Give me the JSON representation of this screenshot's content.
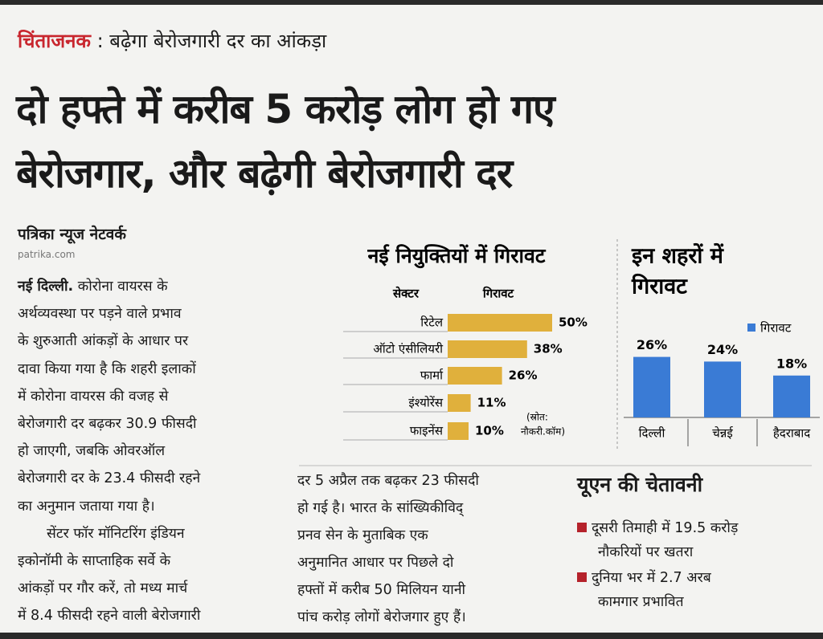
{
  "header": {
    "kicker": "चिंताजनक",
    "subhead": ": बढ़ेगा बेरोजगारी दर का आंकड़ा",
    "headline": [
      "दो हफ्ते में करीब 5 करोड़ लोग हो गए",
      "बेरोजगार, और बढ़ेगी बेरोजगारी दर"
    ]
  },
  "byline": {
    "name": "पत्रिका न्यूज नेटवर्क",
    "site": "patrika.com"
  },
  "article": {
    "dateline": "नई दिल्ली.",
    "column1": [
      "कोरोना वायरस के",
      "अर्थव्यवस्था पर पड़ने वाले प्रभाव",
      "के शुरुआती आंकड़ों के आधार पर",
      "दावा किया गया है कि शहरी इलाकों",
      "में कोरोना वायरस की वजह से",
      "बेरोजगारी दर बढ़कर 30.9 फीसदी",
      "हो जाएगी, जबकि ओवरऑल",
      "बेरोजगारी दर के 23.4 फीसदी रहने",
      "का अनुमान जताया गया है।",
      "सेंटर फॉर मॉनिटरिंग इंडियन",
      "इकोनॉमी के साप्ताहिक सर्वे के",
      "आंकड़ों पर गौर करें, तो मध्य मार्च",
      "में 8.4 फीसदी रहने वाली बेरोजगारी"
    ],
    "column2": [
      "दर 5 अप्रैल तक बढ़कर 23 फीसदी",
      "हो गई है। भारत के सांख्यिकीविद्",
      "प्रनव सेन के मुताबिक एक",
      "अनुमानित आधार पर पिछले दो",
      "हफ्तों में करीब 50 मिलियन यानी",
      "पांच करोड़ लोगों बेरोजगार हुए हैं।"
    ]
  },
  "hiring_chart": {
    "type": "bar",
    "title": "नई नियुक्तियों में गिरावट",
    "category_header": "सेक्टर",
    "value_header": "गिरावट",
    "categories": [
      "रिटेल",
      "ऑटो एंसीलियरी",
      "फार्मा",
      "इंश्योरेंस",
      "फाइनेंस"
    ],
    "values": [
      50,
      38,
      26,
      11,
      10
    ],
    "value_labels": [
      "50%",
      "38%",
      "26%",
      "11%",
      "10%"
    ],
    "color": "#e0b03c",
    "source": [
      "(स्रोत:",
      "नौकरी.कॉम)"
    ]
  },
  "city_chart": {
    "type": "bar",
    "title": [
      "इन शहरों में",
      "गिरावट"
    ],
    "legend": "गिरावट",
    "categories": [
      "दिल्ली",
      "चेन्नई",
      "हैदराबाद"
    ],
    "values": [
      26,
      24,
      18
    ],
    "value_labels": [
      "26%",
      "24%",
      "18%"
    ],
    "color": "#3a7bd5"
  },
  "un_box": {
    "title": "यूएन की चेतावनी",
    "items": [
      [
        "दूसरी तिमाही में 19.5 करोड़",
        "नौकरियों पर खतरा"
      ],
      [
        "दुनिया भर में 2.7 अरब",
        "कामगार प्रभावित"
      ]
    ]
  }
}
